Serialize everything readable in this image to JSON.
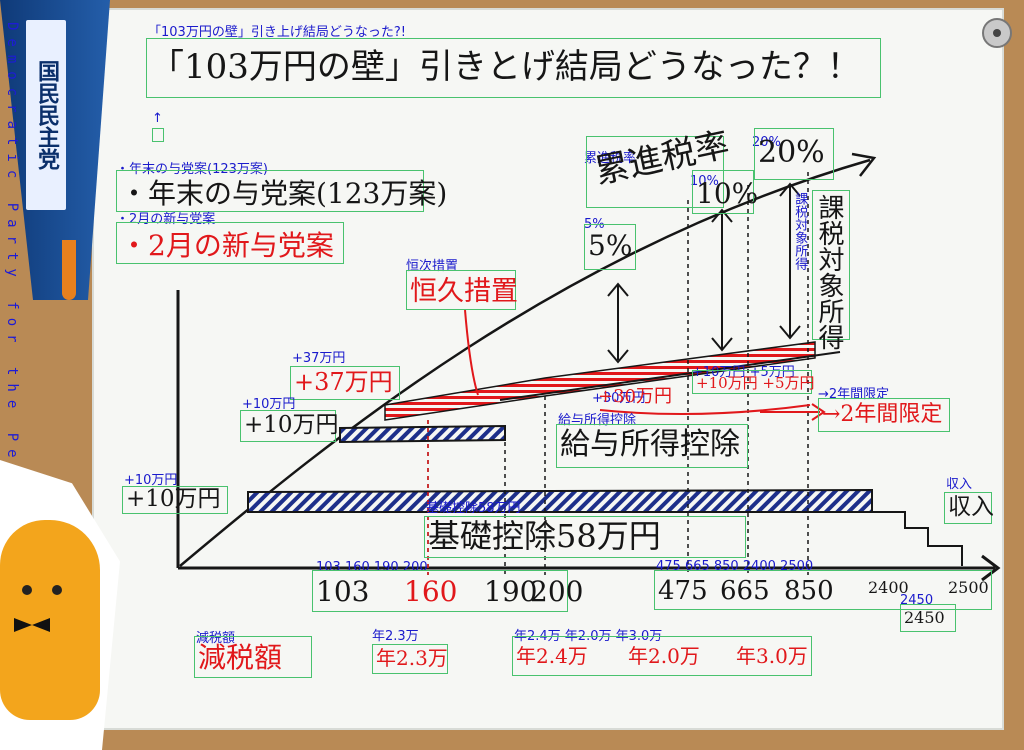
{
  "title": "「103万円の壁」引きとげ結局どうなった？！",
  "title_label": "「103万円の壁」引き上げ結局どうなった?!",
  "legend": {
    "year_end": "・年末の与党案(123万案)",
    "feb": "・2月の新与党案",
    "year_end_label": "・年末の与党案(123万案)",
    "feb_label": "・2月の新与党案",
    "arrow_up": "↑"
  },
  "flag": {
    "logo_text": "国民民主党",
    "tag_text": "Democratic Party for the People"
  },
  "headings": {
    "progressive_tax": "累進税率",
    "progressive_tax_label": "累進税率",
    "taxable_income": "課税対象所得",
    "taxable_income_label": "課税対象所得",
    "permanent": "恒久措置",
    "permanent_label": "恒次措置",
    "two_year": "→2年間限定",
    "two_year_label": "→2年間限定",
    "salary_deduction": "給与所得控除",
    "salary_deduction_label": "給与所得控除",
    "basic_deduction": "基礎控除58万円",
    "basic_deduction_label": "基礎控除58万円",
    "income_axis": "収入",
    "income_axis_label": "収入",
    "tax_cut": "減税額",
    "tax_cut_label": "減税額"
  },
  "rates": [
    {
      "text": "5%",
      "label": "5%"
    },
    {
      "text": "10%",
      "label": "10%"
    },
    {
      "text": "20%",
      "label": "20%"
    }
  ],
  "increments": {
    "plus37": "+37万円",
    "plus37_label": "+37万円",
    "plus10a": "+10万円",
    "plus10a_label": "+10万円",
    "plus10b": "+10万円",
    "plus10b_label": "+10万円",
    "plus30": "+30万円",
    "plus30_label": "+30万円",
    "plus10_5": "+10万円 +5万円",
    "plus10_5_label": "+10万円 +5万円"
  },
  "x_ticks": {
    "left_label": "103 160 190 200",
    "right_label": "475 665 850 2400 2500",
    "t103": "103",
    "t160": "160",
    "t190": "190",
    "t200": "200",
    "t475": "475",
    "t665": "665",
    "t850": "850",
    "t2400": "2400",
    "t2500": "2500",
    "t2450": "2450",
    "t2450_label": "2450"
  },
  "tax_amounts": {
    "a23": "年2.3万",
    "a23_label": "年2.3万",
    "a24": "年2.4万",
    "a20": "年2.0万",
    "a30": "年3.0万",
    "right_label": "年2.4万 年2.0万 年3.0万"
  },
  "colors": {
    "ink": "#161616",
    "red": "#e1181b",
    "navy": "#1d2f8a",
    "annot": "#1a1acc",
    "box": "#49c26e"
  }
}
